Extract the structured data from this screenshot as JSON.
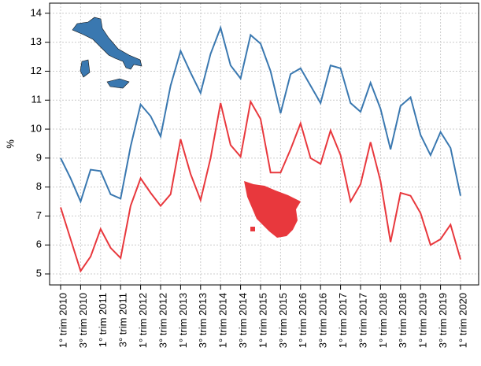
{
  "chart_data": {
    "type": "line",
    "ylabel": "%",
    "categories": [
      "1° trim 2010",
      null,
      "3° trim 2010",
      null,
      "1° trim 2011",
      null,
      "3° trim 2011",
      null,
      "1° trim 2012",
      null,
      "3° trim 2012",
      null,
      "1° trim 2013",
      null,
      "3° trim 2013",
      null,
      "1° trim 2014",
      null,
      "3° trim 2014",
      null,
      "1° trim 2015",
      null,
      "3° trim 2015",
      null,
      "1° trim 2016",
      null,
      "3° trim 2016",
      null,
      "1° trim 2017",
      null,
      "3° trim 2017",
      null,
      "1° trim 2018",
      null,
      "3° trim 2018",
      null,
      "1° trim 2019",
      null,
      "3° trim 2019",
      null,
      "1° trim 2020"
    ],
    "series": [
      {
        "color": "#3a78b0",
        "values": [
          9.0,
          8.3,
          7.5,
          8.6,
          8.55,
          7.75,
          7.6,
          9.4,
          10.85,
          10.45,
          9.75,
          11.5,
          12.7,
          11.95,
          11.25,
          12.6,
          13.5,
          12.2,
          11.75,
          13.25,
          12.95,
          12.0,
          10.55,
          11.9,
          12.1,
          11.5,
          10.9,
          12.2,
          12.1,
          10.9,
          10.6,
          11.6,
          10.7,
          9.3,
          10.8,
          11.1,
          9.8,
          9.1,
          9.9,
          9.35,
          7.7
        ]
      },
      {
        "color": "#e8383d",
        "values": [
          7.3,
          6.2,
          5.1,
          5.6,
          6.55,
          5.9,
          5.55,
          7.35,
          8.3,
          7.8,
          7.35,
          7.75,
          9.65,
          8.45,
          7.55,
          9.0,
          10.9,
          9.45,
          9.05,
          10.95,
          10.35,
          8.5,
          8.5,
          9.3,
          10.2,
          9.0,
          8.8,
          9.95,
          9.1,
          7.5,
          8.1,
          9.55,
          8.2,
          6.1,
          7.8,
          7.7,
          7.1,
          6.0,
          6.2,
          6.7,
          5.5
        ]
      }
    ],
    "ylim": [
      4.62,
      14.35
    ],
    "yticks": [
      5,
      6,
      7,
      8,
      9,
      10,
      11,
      12,
      13,
      14
    ],
    "grid": true
  }
}
